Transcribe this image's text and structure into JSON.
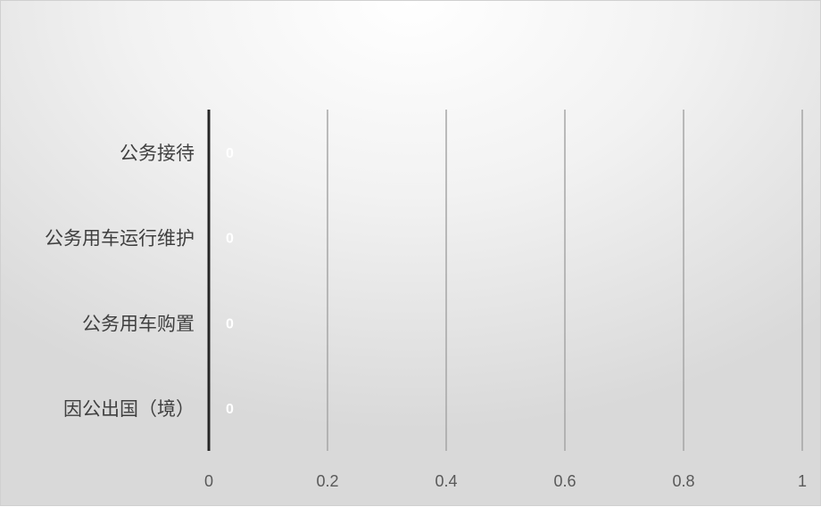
{
  "chart_data": {
    "type": "bar",
    "orientation": "horizontal",
    "categories": [
      "公务接待",
      "公务用车运行维护",
      "公务用车购置",
      "因公出国（境）"
    ],
    "values": [
      0,
      0,
      0,
      0
    ],
    "data_labels": [
      "0",
      "0",
      "0",
      "0"
    ],
    "xlim": [
      0,
      1
    ],
    "xticks": [
      "0",
      "0.2",
      "0.4",
      "0.6",
      "0.8",
      "1"
    ],
    "grid": true,
    "legend": "none",
    "colors": {
      "axis": "#262626",
      "gridline": "#a6a6a6",
      "category_text": "#404040",
      "tick_text": "#595959",
      "data_label": "#ffffff"
    }
  }
}
